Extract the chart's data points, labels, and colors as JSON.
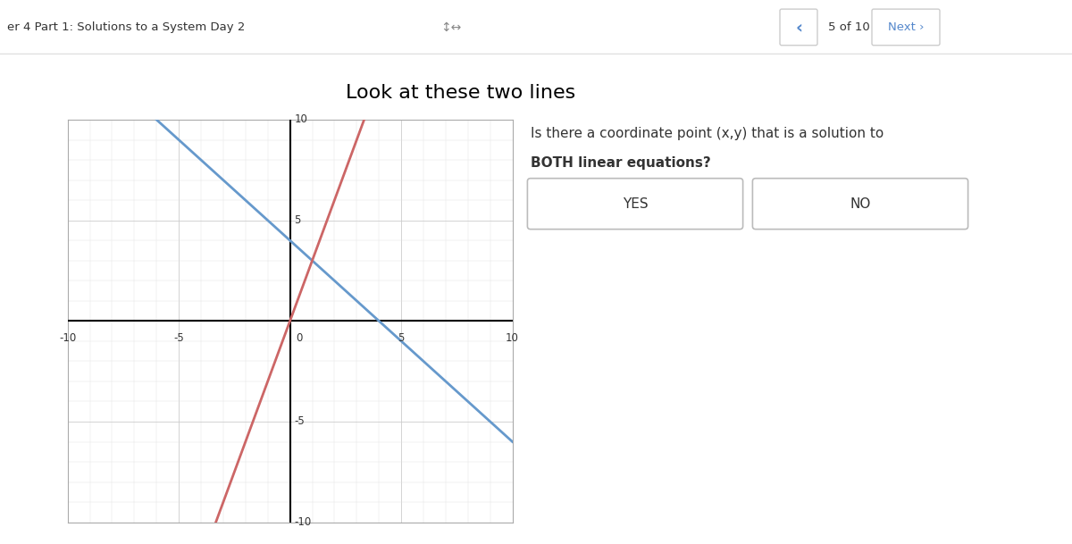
{
  "title": "Look at these two lines",
  "question_text_line1": "Is there a coordinate point (x,y) that is a solution to",
  "question_text_line2": "BOTH linear equations?",
  "yes_label": "YES",
  "no_label": "NO",
  "xlim": [
    -10,
    10
  ],
  "ylim": [
    -10,
    10
  ],
  "xticks": [
    -10,
    -5,
    0,
    5,
    10
  ],
  "yticks": [
    -10,
    -5,
    0,
    5,
    10
  ],
  "blue_line": {
    "slope": -1,
    "intercept": 4,
    "color": "#6699cc"
  },
  "red_line": {
    "slope": 3,
    "intercept": 0,
    "color": "#cc6666"
  },
  "header_text": "er 4 Part 1: Solutions to a System Day 2",
  "nav_text": "5 of 10",
  "bg_color": "#ffffff",
  "header_bg": "#f0f0f0",
  "plot_bg": "#ffffff",
  "grid_color": "#cccccc",
  "grid_minor_color": "#e0e0e0",
  "axis_color": "#000000",
  "tick_label_color": "#333333",
  "title_fontsize": 16,
  "question_fontsize": 11,
  "button_fontsize": 11,
  "header_fontsize": 9.5,
  "nav_color": "#5588cc",
  "text_color": "#333333"
}
